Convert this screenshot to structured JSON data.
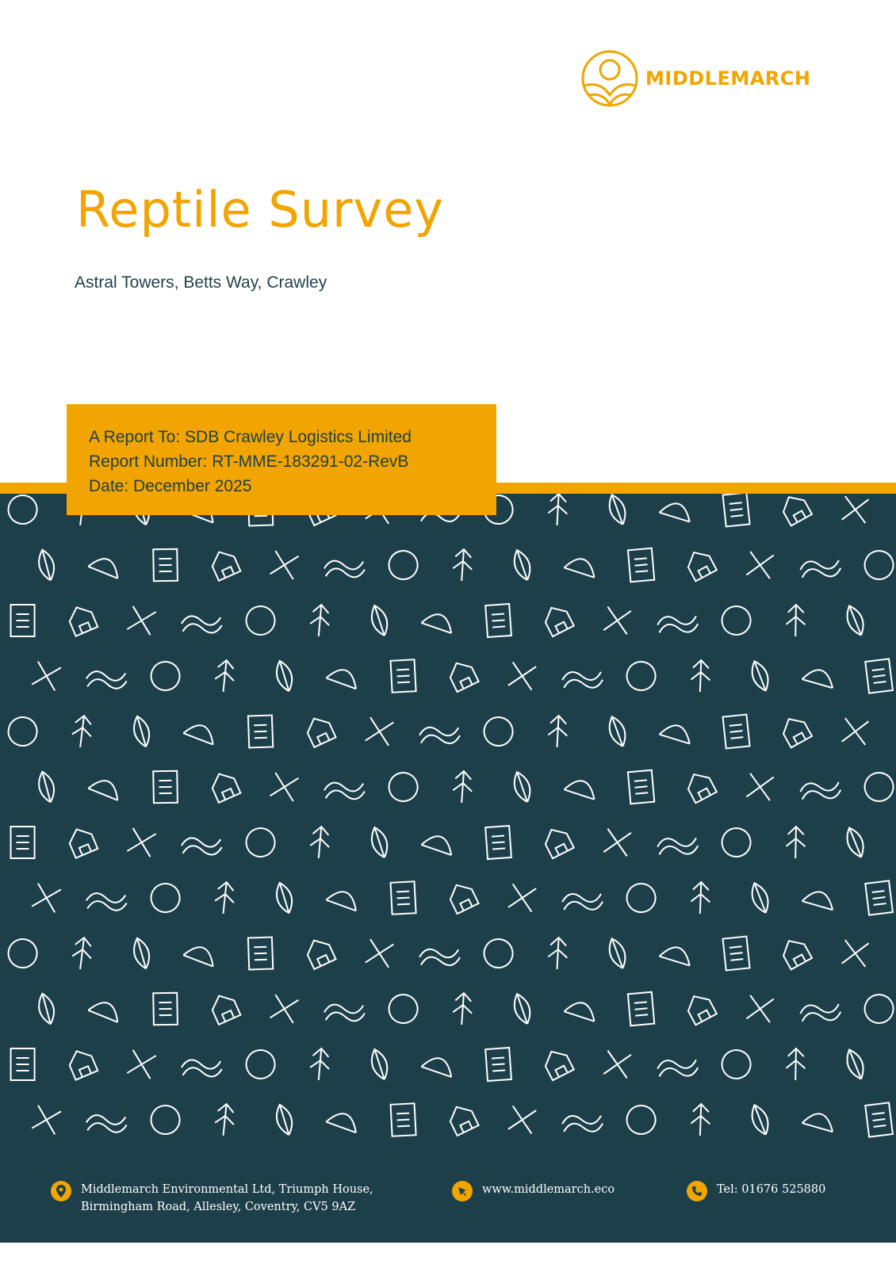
{
  "logo": {
    "text": "MIDDLEMARCH"
  },
  "title": "Reptile Survey",
  "subtitle": "Astral Towers, Betts Way, Crawley",
  "report": {
    "to": "A Report To: SDB Crawley Logistics Limited",
    "number": "Report Number: RT-MME-183291-02-RevB",
    "date": "Date: December 2025"
  },
  "footer": {
    "address_line1": "Middlemarch Environmental Ltd, Triumph House,",
    "address_line2": "Birmingham Road, Allesley, Coventry, CV5 9AZ",
    "website": "www.middlemarch.eco",
    "phone": "Tel: 01676 525880"
  },
  "colors": {
    "accent": "#f2a400",
    "dark": "#1c3f4a"
  }
}
